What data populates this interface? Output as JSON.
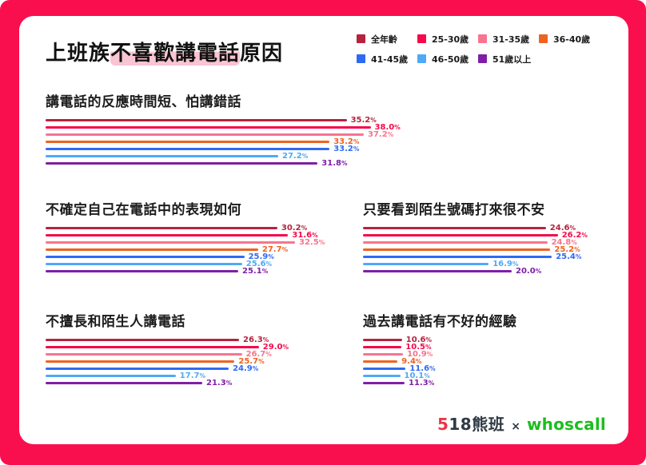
{
  "frame": {
    "border_color": "#FA0F4E",
    "card_color": "#FFFFFF"
  },
  "header": {
    "title_prefix": "上班族",
    "title_highlight": "不喜歡講電話",
    "title_suffix": "原因",
    "highlight_color": "#F9C4D3"
  },
  "legend": {
    "position": "top-right",
    "items": [
      {
        "label": "全年齡",
        "color": "#B5233E"
      },
      {
        "label": "25-30歲",
        "color": "#F5094A"
      },
      {
        "label": "31-35歲",
        "color": "#F7758F"
      },
      {
        "label": "36-40歲",
        "color": "#EE6321"
      },
      {
        "label": "41-45歲",
        "color": "#2F6BF2"
      },
      {
        "label": "46-50歲",
        "color": "#4FA9F7"
      },
      {
        "label": "51歲以上",
        "color": "#7E1FA8"
      }
    ]
  },
  "chart_data": [
    {
      "type": "bar",
      "orientation": "horizontal",
      "title": "講電話的反應時間短、怕講錯話",
      "unit": "%",
      "categories": [
        "全年齡",
        "25-30歲",
        "31-35歲",
        "36-40歲",
        "41-45歲",
        "46-50歲",
        "51歲以上"
      ],
      "values": [
        35.2,
        38.0,
        37.2,
        33.2,
        33.2,
        27.2,
        31.8
      ],
      "xmax": 40
    },
    {
      "type": "bar",
      "orientation": "horizontal",
      "title": "不確定自己在電話中的表現如何",
      "unit": "%",
      "categories": [
        "全年齡",
        "25-30歲",
        "31-35歲",
        "36-40歲",
        "41-45歲",
        "46-50歲",
        "51歲以上"
      ],
      "values": [
        30.2,
        31.6,
        32.5,
        27.7,
        25.9,
        25.6,
        25.1
      ],
      "xmax": 35
    },
    {
      "type": "bar",
      "orientation": "horizontal",
      "title": "只要看到陌生號碼打來很不安",
      "unit": "%",
      "categories": [
        "全年齡",
        "25-30歲",
        "31-35歲",
        "36-40歲",
        "41-45歲",
        "46-50歲",
        "51歲以上"
      ],
      "values": [
        24.6,
        26.2,
        24.8,
        25.2,
        25.4,
        16.9,
        20.0
      ],
      "xmax": 30
    },
    {
      "type": "bar",
      "orientation": "horizontal",
      "title": "不擅長和陌生人講電話",
      "unit": "%",
      "categories": [
        "全年齡",
        "25-30歲",
        "31-35歲",
        "36-40歲",
        "41-45歲",
        "46-50歲",
        "51歲以上"
      ],
      "values": [
        26.3,
        29.0,
        26.7,
        25.7,
        24.9,
        17.7,
        21.3
      ],
      "xmax": 32
    },
    {
      "type": "bar",
      "orientation": "horizontal",
      "title": "過去講電話有不好的經驗",
      "unit": "%",
      "categories": [
        "全年齡",
        "25-30歲",
        "31-35歲",
        "36-40歲",
        "41-45歲",
        "46-50歲",
        "51歲以上"
      ],
      "values": [
        10.6,
        10.5,
        10.9,
        9.4,
        11.6,
        10.1,
        11.3
      ],
      "xmax": 13
    }
  ],
  "footer": {
    "logo_518_accent": "5",
    "logo_518_text": "18熊班",
    "separator": "×",
    "logo_whoscall": "whoscall",
    "accent_color": "#E8374A",
    "dark_color": "#2F3A44",
    "green_color": "#1BBE1E"
  }
}
